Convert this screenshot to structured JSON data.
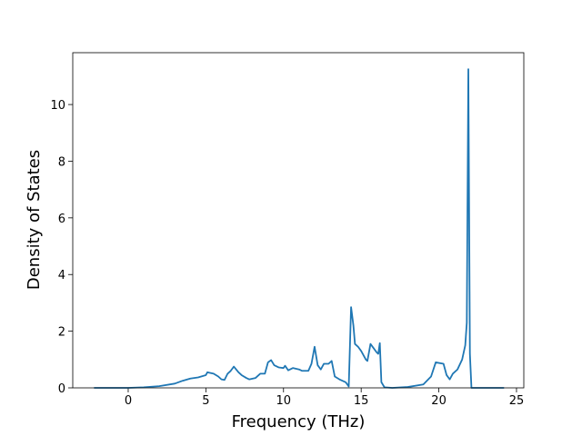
{
  "chart_data": {
    "type": "line",
    "xlabel": "Frequency (THz)",
    "ylabel": "Density of States",
    "x": [
      -2.2,
      0,
      1,
      2,
      3,
      3.5,
      4,
      4.5,
      5,
      5.1,
      5.5,
      5.8,
      6,
      6.2,
      6.4,
      6.6,
      6.8,
      7.1,
      7.3,
      7.6,
      7.8,
      8.2,
      8.5,
      8.8,
      9,
      9.2,
      9.4,
      9.7,
      10,
      10.1,
      10.3,
      10.6,
      11,
      11.2,
      11.6,
      11.8,
      12,
      12.2,
      12.4,
      12.6,
      12.9,
      13.1,
      13.3,
      13.6,
      14,
      14.2,
      14.35,
      14.5,
      14.6,
      14.8,
      15,
      15.3,
      15.4,
      15.6,
      15.8,
      16,
      16.1,
      16.2,
      16.3,
      16.5,
      17,
      18,
      19,
      19.5,
      19.8,
      20.3,
      20.5,
      20.7,
      20.9,
      21.2,
      21.5,
      21.7,
      21.8,
      21.9,
      22.0,
      22.1,
      24.2
    ],
    "values": [
      0,
      0,
      0.02,
      0.06,
      0.15,
      0.25,
      0.33,
      0.37,
      0.45,
      0.55,
      0.5,
      0.4,
      0.3,
      0.28,
      0.5,
      0.6,
      0.75,
      0.55,
      0.45,
      0.35,
      0.3,
      0.35,
      0.5,
      0.5,
      0.9,
      0.98,
      0.8,
      0.72,
      0.7,
      0.78,
      0.62,
      0.7,
      0.65,
      0.6,
      0.6,
      0.85,
      1.45,
      0.8,
      0.65,
      0.85,
      0.85,
      0.95,
      0.4,
      0.3,
      0.2,
      0.05,
      2.85,
      2.2,
      1.55,
      1.45,
      1.3,
      1.0,
      0.95,
      1.55,
      1.4,
      1.25,
      1.2,
      1.58,
      0.2,
      0.02,
      0,
      0.03,
      0.12,
      0.4,
      0.9,
      0.85,
      0.45,
      0.3,
      0.5,
      0.65,
      1.0,
      1.5,
      2.3,
      11.25,
      1.2,
      0,
      0
    ],
    "color": "#1f77b4",
    "xlim": [
      -3.57,
      25.47
    ],
    "ylim": [
      0,
      11.83
    ],
    "xticks": [
      0,
      5,
      10,
      15,
      20,
      25
    ],
    "yticks": [
      0,
      2,
      4,
      6,
      8,
      10
    ]
  }
}
